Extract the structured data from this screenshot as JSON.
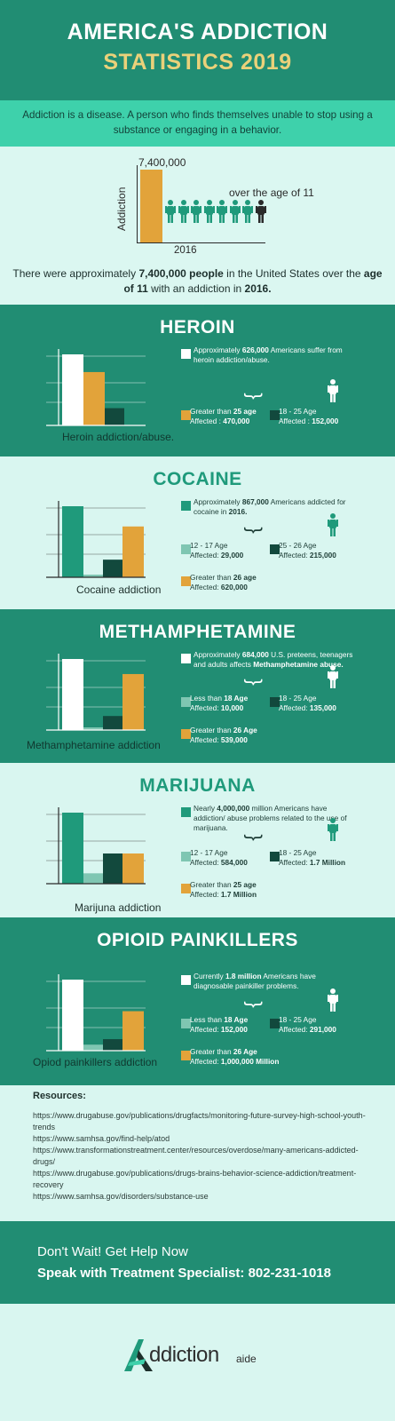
{
  "header": {
    "title_line1": "AMERICA'S ADDICTION",
    "title_line2": "STATISTICS 2019"
  },
  "intro": "Addiction is a disease. A person who finds themselves unable to stop using a substance or engaging in a behavior.",
  "overview": {
    "bar_value_label": "7,400,000",
    "axis_label": "Addiction",
    "year": "2016",
    "people_label": "over the age of 11",
    "summary_pre": "There were approximately ",
    "summary_b1": "7,400,000 people",
    "summary_mid": " in the United States over the ",
    "summary_b2": "age of 11",
    "summary_mid2": " with an addiction in ",
    "summary_b3": "2016.",
    "chart_data": {
      "type": "bar",
      "categories": [
        "2016"
      ],
      "values": [
        7400000
      ],
      "ylabel": "Addiction"
    }
  },
  "colors": {
    "dark_green": "#218d73",
    "mint": "#3ed1ab",
    "light_bg": "#d9f6f0",
    "orange": "#e2a33a",
    "teal": "#1f9a7b",
    "deep_green": "#12493d",
    "pale_teal": "#7fc6b2",
    "white": "#ffffff",
    "gold": "#ead17a"
  },
  "sections": [
    {
      "title": "HEROIN",
      "caption": "Heroin addiction/abuse.",
      "desc_pre": "Approximately ",
      "desc_b": "626,000",
      "desc_post": " Americans suffer from heroin addiction/abuse.",
      "legend": [
        {
          "l1": "Greater than ",
          "l1b": "25 age",
          "l2": "Affected : ",
          "l2b": "470,000"
        },
        {
          "l1": "18 - 25 Age",
          "l1b": "",
          "l2": "Affected : ",
          "l2b": "152,000"
        }
      ],
      "chart_data": {
        "type": "bar",
        "categories": [
          "Total",
          "Greater than 25 age",
          "18 - 25 Age"
        ],
        "values": [
          626000,
          470000,
          152000
        ]
      }
    },
    {
      "title": "COCAINE",
      "caption": "Cocaine addiction",
      "desc_pre": "Approximately ",
      "desc_b": "867,000",
      "desc_post": " Americans addicted for cocaine in ",
      "desc_b2": "2016.",
      "legend": [
        {
          "l1": "12 - 17 Age",
          "l1b": "",
          "l2": "Affected: ",
          "l2b": "29,000"
        },
        {
          "l1": "25 - 26 Age",
          "l1b": "",
          "l2": "Affected: ",
          "l2b": "215,000"
        },
        {
          "l1": "Greater than ",
          "l1b": "26 age",
          "l2": "Affected: ",
          "l2b": "620,000"
        }
      ],
      "chart_data": {
        "type": "bar",
        "categories": [
          "Total",
          "12 - 17 Age",
          "25 - 26 Age",
          "Greater than 26 age"
        ],
        "values": [
          867000,
          29000,
          215000,
          620000
        ]
      }
    },
    {
      "title": "METHAMPHETAMINE",
      "caption": "Methamphetamine addiction",
      "desc_pre": "Approximately ",
      "desc_b": "684,000",
      "desc_post": " U.S. preteens, teenagers and adults affects ",
      "desc_b2": "Methamphetamine abuse.",
      "legend": [
        {
          "l1": "Less than ",
          "l1b": "18 Age",
          "l2": "Affected: ",
          "l2b": "10,000"
        },
        {
          "l1": "18 - 25 Age",
          "l1b": "",
          "l2": "Affected: ",
          "l2b": "135,000"
        },
        {
          "l1": "Greater than ",
          "l1b": "26 Age",
          "l2": "Affected: ",
          "l2b": "539,000"
        }
      ],
      "chart_data": {
        "type": "bar",
        "categories": [
          "Total",
          "Less than 18 Age",
          "18 - 25 Age",
          "Greater than 26 Age"
        ],
        "values": [
          684000,
          10000,
          135000,
          539000
        ]
      }
    },
    {
      "title": "MARIJUANA",
      "caption": "Marijuna addiction",
      "desc_pre": "Nearly ",
      "desc_b": "4,000,000",
      "desc_post": " million Americans have addiction/ abuse problems related to the use of marijuana.",
      "legend": [
        {
          "l1": "12 - 17 Age",
          "l1b": "",
          "l2": "Affected: ",
          "l2b": "584,000"
        },
        {
          "l1": "18 - 25 Age",
          "l1b": "",
          "l2": "Affected: ",
          "l2b": "1.7 Million"
        },
        {
          "l1": "Greater than ",
          "l1b": "25 age",
          "l2": "Affected: ",
          "l2b": "1.7 Million"
        }
      ],
      "chart_data": {
        "type": "bar",
        "categories": [
          "Total",
          "12 - 17 Age",
          "18 - 25 Age",
          "Greater than 25 age"
        ],
        "values": [
          4000000,
          584000,
          1700000,
          1700000
        ]
      }
    },
    {
      "title": "OPIOID PAINKILLERS",
      "caption": "Opiod painkillers addiction",
      "desc_pre": "Currently ",
      "desc_b": "1.8 million",
      "desc_post": " Americans have diagnosable painkiller problems.",
      "legend": [
        {
          "l1": "Less than ",
          "l1b": "18 Age",
          "l2": "Affected: ",
          "l2b": "152,000"
        },
        {
          "l1": "18 - 25 Age",
          "l1b": "",
          "l2": "Affected: ",
          "l2b": "291,000"
        },
        {
          "l1": "Greater than ",
          "l1b": "26 Age",
          "l2": "Affected: ",
          "l2b": "1,000,000 Million"
        }
      ],
      "chart_data": {
        "type": "bar",
        "categories": [
          "Total",
          "Less than 18 Age",
          "18 - 25 Age",
          "Greater than 26 Age"
        ],
        "values": [
          1800000,
          152000,
          291000,
          1000000
        ]
      }
    }
  ],
  "resources": {
    "title": "Resources:",
    "links": [
      "https://www.drugabuse.gov/publications/drugfacts/monitoring-future-survey-high-school-youth-trends",
      "https://www.samhsa.gov/find-help/atod",
      "https://www.transformationstreatment.center/resources/overdose/many-americans-addicted-drugs/",
      "https://www.drugabuse.gov/publications/drugs-brains-behavior-science-addiction/treatment-recovery",
      "https://www.samhsa.gov/disorders/substance-use"
    ]
  },
  "cta": {
    "line1": "Don't Wait! Get Help Now",
    "line2": "Speak with Treatment Specialist: 802-231-1018"
  },
  "logo": {
    "name": "ddiction",
    "sub": "aide"
  },
  "icons": [
    "person-icon",
    "brace-icon",
    "logo-a-icon"
  ]
}
